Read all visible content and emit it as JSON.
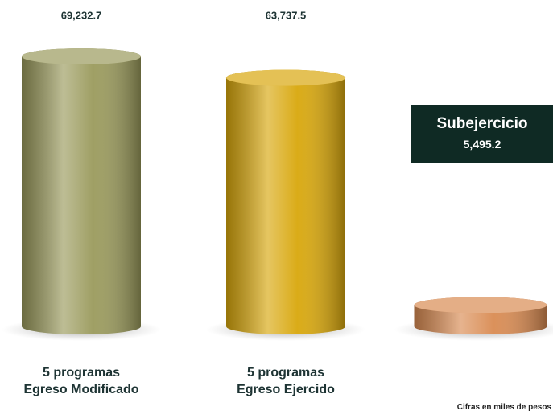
{
  "chart_data": {
    "type": "cylinder",
    "categories": [
      "5 programas\nEgreso Modificado",
      "5 programas\nEgreso Ejercido",
      null
    ],
    "values": [
      69232.7,
      63737.5,
      5495.2
    ],
    "value_labels": [
      "69,232.7",
      "63,737.5",
      "5,495.2"
    ],
    "colors": [
      "#9a9a5c",
      "#d8a70c",
      "#d98b52"
    ],
    "annotation": "Subejercicio",
    "note": "Cifras en miles de pesos"
  }
}
